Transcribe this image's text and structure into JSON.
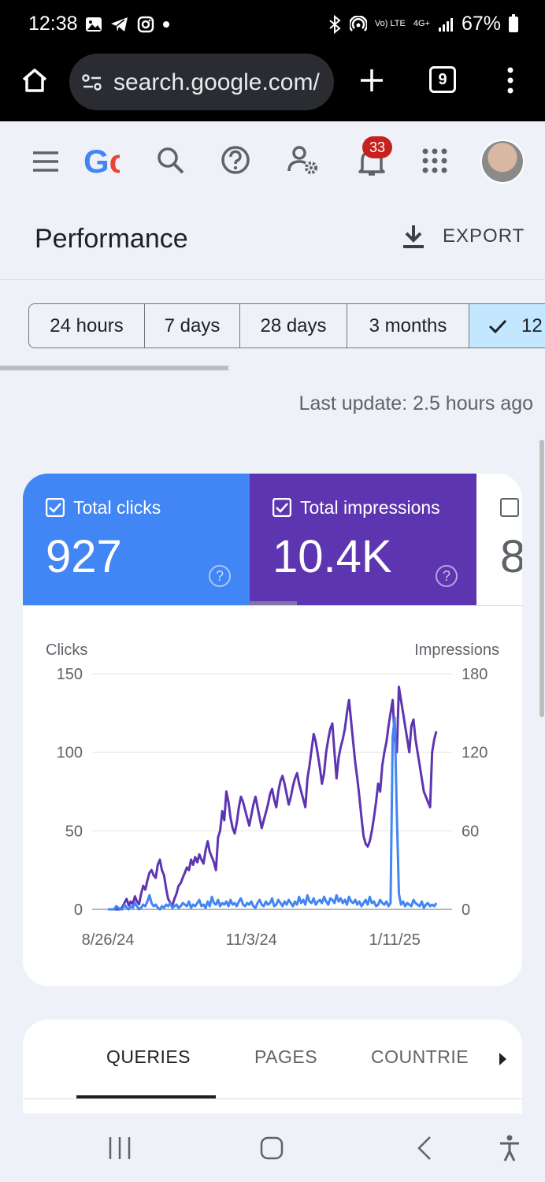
{
  "status_bar": {
    "time": "12:38",
    "network_volte": "Vo) LTE",
    "network_4g": "4G+",
    "battery": "67%"
  },
  "browser": {
    "url": "search.google.com/",
    "tab_count": "9"
  },
  "header": {
    "logo_text": "Gc",
    "notification_count": "33"
  },
  "page": {
    "title": "Performance",
    "export_label": "EXPORT"
  },
  "date_chips": [
    {
      "label": "24 hours"
    },
    {
      "label": "7 days"
    },
    {
      "label": "28 days"
    },
    {
      "label": "3 months"
    },
    {
      "label": "12",
      "selected": true
    }
  ],
  "last_update": "Last update: 2.5 hours ago",
  "metrics": {
    "clicks": {
      "label": "Total clicks",
      "value": "927",
      "help": "?"
    },
    "impressions": {
      "label": "Total impressions",
      "value": "10.4K",
      "help": "?"
    },
    "ctr": {
      "value": "8"
    }
  },
  "colors": {
    "clicks": "#4285f4",
    "impressions": "#5e35b1",
    "selected_chip": "#c2e7ff"
  },
  "tabs": {
    "queries": "QUERIES",
    "pages": "PAGES",
    "countries": "COUNTRIES"
  },
  "chart_data": {
    "type": "line",
    "ylabel_left": "Clicks",
    "ylabel_right": "Impressions",
    "y_left_ticks": [
      0,
      50,
      100,
      150
    ],
    "y_right_ticks": [
      0,
      60,
      120,
      180
    ],
    "ylim_left": [
      0,
      150
    ],
    "ylim_right": [
      0,
      180
    ],
    "x_tick_labels": [
      "8/26/24",
      "11/3/24",
      "1/11/25"
    ],
    "x_tick_index": [
      0,
      69,
      138
    ],
    "n_points": 159,
    "series": [
      {
        "name": "Clicks",
        "axis": "left",
        "color": "#4285f4",
        "values": [
          0,
          0,
          0,
          0,
          2,
          1,
          0,
          0,
          3,
          1,
          0,
          2,
          1,
          4,
          2,
          0,
          1,
          3,
          2,
          5,
          9,
          4,
          2,
          3,
          1,
          0,
          2,
          1,
          3,
          2,
          4,
          1,
          2,
          3,
          1,
          2,
          4,
          3,
          2,
          5,
          1,
          3,
          2,
          4,
          6,
          2,
          3,
          1,
          5,
          2,
          8,
          4,
          3,
          6,
          2,
          4,
          3,
          5,
          2,
          6,
          3,
          4,
          2,
          5,
          7,
          3,
          2,
          4,
          3,
          5,
          2,
          1,
          4,
          6,
          3,
          2,
          5,
          3,
          4,
          7,
          2,
          3,
          6,
          4,
          2,
          5,
          3,
          6,
          4,
          2,
          5,
          3,
          8,
          4,
          6,
          3,
          9,
          5,
          4,
          7,
          3,
          5,
          6,
          4,
          8,
          5,
          3,
          7,
          6,
          4,
          9,
          5,
          7,
          4,
          6,
          3,
          8,
          5,
          4,
          6,
          3,
          5,
          2,
          4,
          6,
          3,
          8,
          4,
          5,
          2,
          3,
          6,
          4,
          3,
          5,
          2,
          4,
          110,
          122,
          60,
          10,
          3,
          5,
          2,
          4,
          3,
          2,
          6,
          4,
          3,
          2,
          5,
          1,
          3,
          4,
          2,
          3,
          2,
          4
        ]
      },
      {
        "name": "Impressions",
        "axis": "right",
        "color": "#5e35b1",
        "values": [
          0,
          0,
          0,
          0,
          0,
          0,
          0,
          2,
          5,
          8,
          3,
          6,
          4,
          10,
          6,
          4,
          12,
          18,
          15,
          22,
          28,
          30,
          26,
          24,
          34,
          38,
          30,
          26,
          16,
          8,
          5,
          3,
          8,
          12,
          18,
          20,
          24,
          28,
          32,
          30,
          38,
          34,
          40,
          36,
          42,
          38,
          35,
          45,
          52,
          44,
          40,
          36,
          30,
          55,
          60,
          75,
          68,
          90,
          82,
          70,
          62,
          58,
          66,
          78,
          86,
          82,
          76,
          70,
          64,
          72,
          80,
          86,
          78,
          70,
          62,
          68,
          74,
          80,
          88,
          92,
          84,
          78,
          90,
          98,
          102,
          96,
          88,
          80,
          86,
          94,
          100,
          104,
          96,
          90,
          84,
          78,
          100,
          110,
          122,
          134,
          128,
          118,
          108,
          96,
          104,
          120,
          130,
          138,
          142,
          120,
          100,
          116,
          124,
          130,
          138,
          150,
          160,
          144,
          128,
          112,
          100,
          86,
          70,
          56,
          50,
          48,
          52,
          60,
          70,
          82,
          96,
          90,
          110,
          120,
          128,
          140,
          150,
          160,
          130,
          120,
          170,
          160,
          150,
          140,
          130,
          120,
          140,
          145,
          130,
          120,
          110,
          100,
          90,
          86,
          82,
          78,
          120,
          130,
          136
        ]
      }
    ]
  }
}
